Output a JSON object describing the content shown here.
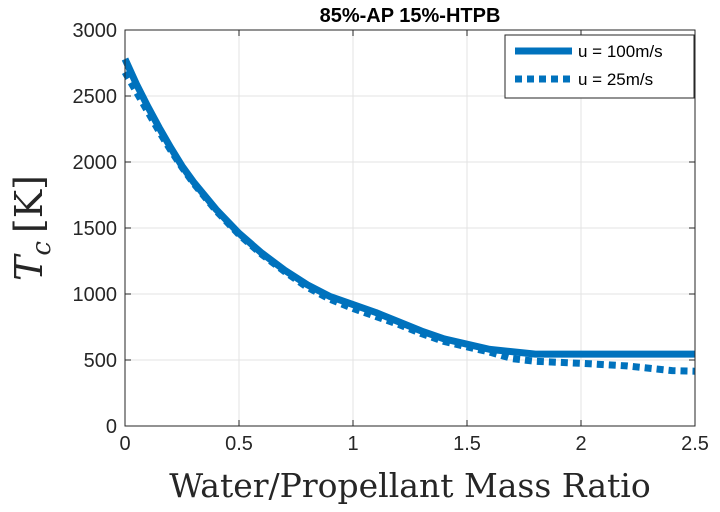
{
  "chart_data": {
    "type": "line",
    "title": "85%-AP 15%-HTPB",
    "xlabel": "Water/Propellant Mass Ratio",
    "ylabel": "T_c [K]",
    "ylabel_parts": {
      "symbol": "T",
      "subscript": "c",
      "unit": "[K]"
    },
    "xlim": [
      0,
      2.5
    ],
    "ylim": [
      0,
      3000
    ],
    "xticks": [
      0,
      0.5,
      1,
      1.5,
      2,
      2.5
    ],
    "xtick_labels": [
      "0",
      "0.5",
      "1",
      "1.5",
      "2",
      "2.5"
    ],
    "yticks": [
      0,
      500,
      1000,
      1500,
      2000,
      2500,
      3000
    ],
    "ytick_labels": [
      "0",
      "500",
      "1000",
      "1500",
      "2000",
      "2500",
      "3000"
    ],
    "grid": true,
    "legend_position": "top-right",
    "series": [
      {
        "name": "u = 100m/s",
        "style": "solid",
        "color": "#0072BD",
        "x": [
          0,
          0.05,
          0.1,
          0.15,
          0.2,
          0.25,
          0.3,
          0.4,
          0.5,
          0.6,
          0.7,
          0.8,
          0.9,
          1.0,
          1.1,
          1.2,
          1.3,
          1.4,
          1.5,
          1.6,
          1.8,
          2.0,
          2.25,
          2.5
        ],
        "y": [
          2780,
          2590,
          2420,
          2260,
          2110,
          1970,
          1850,
          1640,
          1460,
          1310,
          1180,
          1070,
          980,
          920,
          860,
          790,
          720,
          660,
          620,
          580,
          545,
          545,
          545,
          545
        ]
      },
      {
        "name": "u = 25m/s",
        "style": "dotted",
        "color": "#0072BD",
        "x": [
          0,
          0.05,
          0.1,
          0.15,
          0.2,
          0.25,
          0.3,
          0.4,
          0.5,
          0.6,
          0.7,
          0.8,
          0.9,
          1.0,
          1.1,
          1.2,
          1.3,
          1.4,
          1.5,
          1.6,
          1.7,
          1.8,
          2.0,
          2.2,
          2.4,
          2.5
        ],
        "y": [
          2680,
          2530,
          2380,
          2230,
          2090,
          1960,
          1840,
          1630,
          1450,
          1300,
          1170,
          1050,
          960,
          890,
          830,
          770,
          700,
          640,
          600,
          560,
          510,
          490,
          475,
          455,
          420,
          415
        ]
      }
    ]
  }
}
